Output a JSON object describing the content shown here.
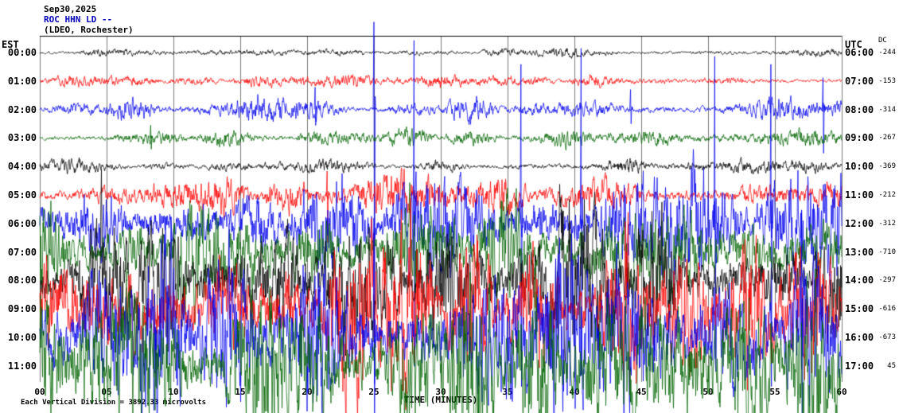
{
  "header": {
    "date": "Sep30,2025",
    "station": "ROC HHN LD --",
    "location": "(LDEO, Rochester)"
  },
  "axes": {
    "left": "EST",
    "right": "UTC",
    "dc": "DC"
  },
  "footer": {
    "scale_note": "Each Vertical Division = 3892.33 microvolts"
  },
  "chart_data": {
    "type": "line",
    "title": "ROC HHN LD -- (LDEO, Rochester) Sep30,2025 helicorder seismogram",
    "xlabel": "TIME (MINUTES)",
    "x_ticks": [
      "00",
      "05",
      "10",
      "15",
      "20",
      "25",
      "30",
      "35",
      "40",
      "45",
      "50",
      "55",
      "60"
    ],
    "x_range_minutes": [
      0,
      60
    ],
    "grid": {
      "vertical_every_minutes": 5,
      "color": "#7a7a7a"
    },
    "trace_colors": {
      "black": "#000000",
      "red": "#ff0000",
      "blue": "#0000ee",
      "green": "#006400"
    },
    "rows": [
      {
        "est": "00:00",
        "utc": "06:00",
        "dc": "-244",
        "color": "black",
        "amp": 5,
        "burst": 1.5,
        "spikes": []
      },
      {
        "est": "01:00",
        "utc": "07:00",
        "dc": "-153",
        "color": "red",
        "amp": 6,
        "burst": 1.6,
        "spikes": []
      },
      {
        "est": "02:00",
        "utc": "08:00",
        "dc": "-314",
        "color": "blue",
        "amp": 9,
        "burst": 2.2,
        "spikes": [
          [
            25,
            110,
            345
          ],
          [
            20.6,
            28,
            20
          ],
          [
            44.2,
            25,
            18
          ],
          [
            58.6,
            40,
            55
          ]
        ]
      },
      {
        "est": "03:00",
        "utc": "09:00",
        "dc": "-267",
        "color": "green",
        "amp": 8,
        "burst": 1.8,
        "spikes": [
          [
            8.3,
            16,
            14
          ]
        ]
      },
      {
        "est": "04:00",
        "utc": "10:00",
        "dc": "-369",
        "color": "black",
        "amp": 7,
        "burst": 1.6,
        "spikes": []
      },
      {
        "est": "05:00",
        "utc": "11:00",
        "dc": "-212",
        "color": "red",
        "amp": 16,
        "burst": 2.0,
        "spikes": [
          [
            21.5,
            30,
            60
          ]
        ]
      },
      {
        "est": "06:00",
        "utc": "12:00",
        "dc": "-312",
        "color": "blue",
        "amp": 45,
        "burst": 1.9,
        "spikes": [
          [
            28,
            230,
            180
          ],
          [
            36,
            200,
            205
          ],
          [
            40.5,
            220,
            190
          ],
          [
            50.5,
            210,
            170
          ],
          [
            54.7,
            200,
            205
          ]
        ]
      },
      {
        "est": "07:00",
        "utc": "13:00",
        "dc": "-710",
        "color": "green",
        "amp": 58,
        "burst": 1.8,
        "spikes": []
      },
      {
        "est": "08:00",
        "utc": "14:00",
        "dc": "-297",
        "color": "black",
        "amp": 62,
        "burst": 1.8,
        "spikes": []
      },
      {
        "est": "09:00",
        "utc": "15:00",
        "dc": "-616",
        "color": "red",
        "amp": 68,
        "burst": 1.8,
        "spikes": []
      },
      {
        "est": "10:00",
        "utc": "16:00",
        "dc": "-673",
        "color": "blue",
        "amp": 80,
        "burst": 2.0,
        "spikes": [
          [
            25,
            150,
            140
          ],
          [
            57,
            160,
            150
          ]
        ]
      },
      {
        "est": "11:00",
        "utc": "17:00",
        "dc": "45",
        "color": "green",
        "amp": 85,
        "burst": 1.8,
        "spikes": []
      }
    ]
  }
}
